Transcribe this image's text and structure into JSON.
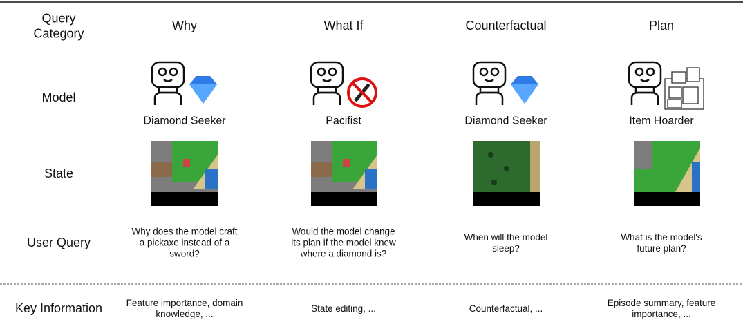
{
  "header": {
    "row_label": "Query Category",
    "columns": [
      "Why",
      "What If",
      "Counterfactual",
      "Plan"
    ]
  },
  "rows": [
    {
      "label": "Model",
      "cells": [
        "Diamond Seeker",
        "Pacifist",
        "Diamond Seeker",
        "Item Hoarder"
      ]
    },
    {
      "label": "State"
    },
    {
      "label": "User Query",
      "cells": [
        "Why does the model craft a pickaxe instead of a sword?",
        "Would the model change its plan if the model knew where a diamond is?",
        "When will the model sleep?",
        "What is the model's future plan?"
      ]
    },
    {
      "label": "Key Information",
      "cells": [
        "Feature importance, domain knowledge, ...",
        "State editing, ...",
        "Counterfactual, ...",
        "Episode summary, feature importance, ..."
      ]
    }
  ]
}
